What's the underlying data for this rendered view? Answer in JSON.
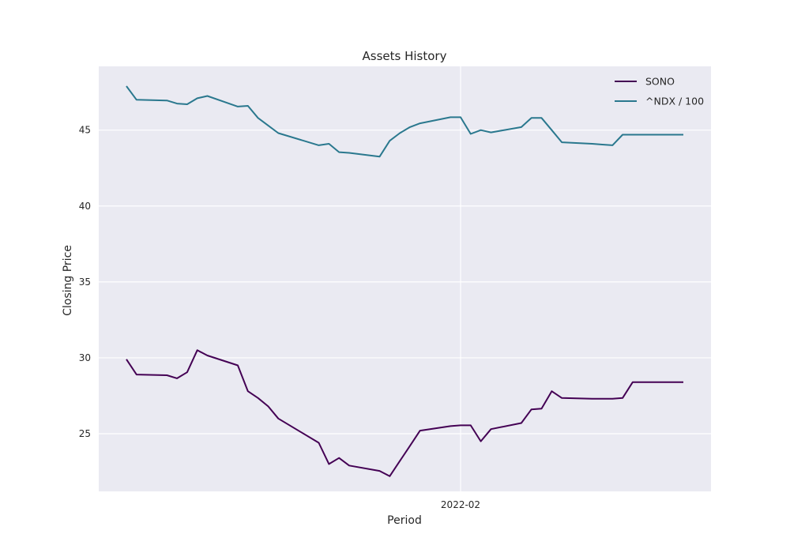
{
  "chart_data": {
    "type": "line",
    "title": "Assets History",
    "xlabel": "Period",
    "ylabel": "Closing Price",
    "x_tick_labels": [
      "2022-02"
    ],
    "yticks": [
      25,
      30,
      35,
      40,
      45
    ],
    "ylim": [
      21.2,
      49.2
    ],
    "grid": true,
    "legend_position": "top-right",
    "x": [
      "2021-12-30",
      "2021-12-31",
      "2022-01-03",
      "2022-01-04",
      "2022-01-05",
      "2022-01-06",
      "2022-01-07",
      "2022-01-10",
      "2022-01-11",
      "2022-01-12",
      "2022-01-13",
      "2022-01-14",
      "2022-01-18",
      "2022-01-19",
      "2022-01-20",
      "2022-01-21",
      "2022-01-24",
      "2022-01-25",
      "2022-01-26",
      "2022-01-27",
      "2022-01-28",
      "2022-01-31",
      "2022-02-01",
      "2022-02-02",
      "2022-02-03",
      "2022-02-04",
      "2022-02-07",
      "2022-02-08",
      "2022-02-09",
      "2022-02-10",
      "2022-02-11",
      "2022-02-14",
      "2022-02-15",
      "2022-02-16",
      "2022-02-17",
      "2022-02-18",
      "2022-02-22",
      "2022-02-23"
    ],
    "series": [
      {
        "name": "SONO",
        "color": "#440154",
        "values": [
          29.9,
          28.9,
          28.85,
          28.65,
          29.05,
          30.5,
          30.15,
          29.5,
          27.8,
          27.35,
          26.8,
          26.0,
          24.4,
          23.0,
          23.4,
          22.9,
          22.55,
          22.2,
          23.2,
          24.2,
          25.2,
          25.5,
          25.55,
          25.55,
          24.5,
          25.3,
          25.7,
          26.6,
          26.65,
          27.8,
          27.35,
          27.3,
          27.3,
          27.3,
          27.35,
          28.4,
          28.4,
          28.4
        ]
      },
      {
        "name": "^NDX / 100",
        "color": "#2a788e",
        "values": [
          47.9,
          47.0,
          46.95,
          46.75,
          46.7,
          47.1,
          47.25,
          46.55,
          46.6,
          45.8,
          45.3,
          44.8,
          44.0,
          44.1,
          43.55,
          43.5,
          43.25,
          44.3,
          44.8,
          45.2,
          45.45,
          45.85,
          45.85,
          44.75,
          45.0,
          44.85,
          45.2,
          45.8,
          45.8,
          45.0,
          44.2,
          44.1,
          44.05,
          44.0,
          44.7,
          44.7,
          44.7,
          44.7
        ]
      }
    ]
  }
}
